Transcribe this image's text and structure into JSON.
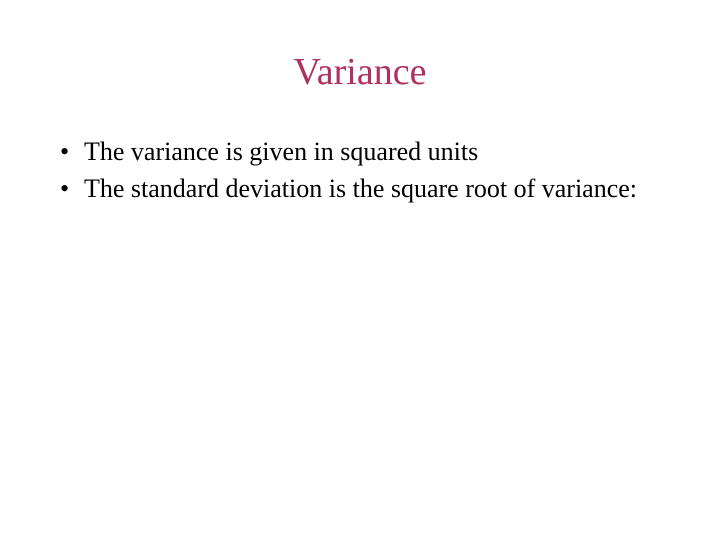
{
  "slide": {
    "title": "Variance",
    "title_color": "#b03060",
    "body_color": "#000000",
    "background_color": "#ffffff",
    "title_fontsize": 38,
    "body_fontsize": 26,
    "font_family": "Times New Roman",
    "bullets": [
      "The variance is given in squared units",
      "The standard deviation is the square root of variance:"
    ]
  }
}
